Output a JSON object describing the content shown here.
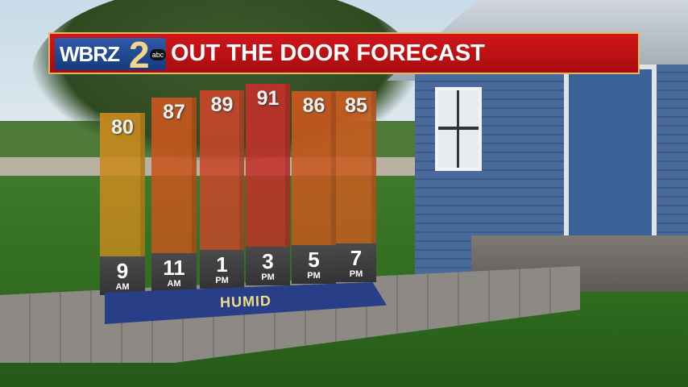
{
  "banner": {
    "station": "WBRZ",
    "channel": "2",
    "network": "abc",
    "title": "OUT THE DOOR FORECAST"
  },
  "chart_data": {
    "type": "bar",
    "title": "OUT THE DOOR FORECAST",
    "categories": [
      {
        "hour": "9",
        "period": "AM"
      },
      {
        "hour": "11",
        "period": "AM"
      },
      {
        "hour": "1",
        "period": "PM"
      },
      {
        "hour": "3",
        "period": "PM"
      },
      {
        "hour": "5",
        "period": "PM"
      },
      {
        "hour": "7",
        "period": "PM"
      }
    ],
    "values": [
      80,
      87,
      89,
      91,
      86,
      85
    ],
    "colors": [
      "#c98a1e",
      "#c8561e",
      "#c8462a",
      "#c3302a",
      "#c9581f",
      "#c95c20"
    ],
    "annotation": "HUMID"
  }
}
